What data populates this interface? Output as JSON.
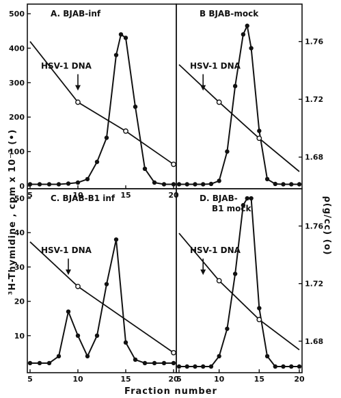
{
  "figure": {
    "xlabel": "Fraction number",
    "ylabel_left": "³H-Thymidine , cpm x 10⁻³ (•)",
    "ylabel_right": "ρ(g/cc)    (o)"
  },
  "chart_data": [
    {
      "type": "line",
      "panel": "A",
      "title": "A. BJAB-inf",
      "annotation": "HSV-1 DNA",
      "arrow_x": 10,
      "xlim": [
        5,
        20
      ],
      "ylim": [
        0,
        520
      ],
      "yticks": [
        0,
        100,
        200,
        300,
        400,
        500
      ],
      "xticks": [
        5,
        10,
        15,
        20
      ],
      "density_ylim": [
        1.66,
        1.784
      ],
      "density_yticks": [],
      "series": [
        {
          "role": "cpm",
          "marker": "filled-circle",
          "x": [
            5,
            6,
            7,
            8,
            9,
            10,
            11,
            12,
            13,
            14,
            14.5,
            15,
            16,
            17,
            18,
            19,
            20
          ],
          "y": [
            5,
            5,
            5,
            5,
            7,
            10,
            20,
            70,
            140,
            380,
            440,
            430,
            230,
            50,
            10,
            5,
            5
          ]
        },
        {
          "role": "density",
          "marker": "open-circle",
          "x": [
            5,
            10,
            15,
            20
          ],
          "y": [
            1.76,
            1.718,
            1.698,
            1.675
          ],
          "markers_at": [
            10,
            15,
            20
          ]
        }
      ]
    },
    {
      "type": "line",
      "panel": "B",
      "title": "B BJAB-mock",
      "annotation": "HSV-1 DNA",
      "arrow_x": 8,
      "xlim": [
        5,
        20
      ],
      "ylim": [
        0,
        520
      ],
      "yticks": [],
      "xticks": [],
      "density_ylim": [
        1.66,
        1.784
      ],
      "density_yticks": [
        1.76,
        1.72,
        1.68
      ],
      "series": [
        {
          "role": "cpm",
          "marker": "filled-circle",
          "x": [
            5,
            6,
            7,
            8,
            9,
            10,
            11,
            12,
            13,
            13.5,
            14,
            15,
            16,
            17,
            18,
            19,
            20
          ],
          "y": [
            5,
            5,
            5,
            5,
            6,
            15,
            100,
            290,
            440,
            465,
            400,
            160,
            20,
            6,
            5,
            5,
            5
          ]
        },
        {
          "role": "density",
          "marker": "open-circle",
          "x": [
            5,
            10,
            15,
            20
          ],
          "y": [
            1.744,
            1.718,
            1.693,
            1.67
          ],
          "markers_at": [
            10,
            15
          ]
        }
      ]
    },
    {
      "type": "line",
      "panel": "C",
      "title": "C. BJAB-B1 inf",
      "annotation": "HSV-1 DNA",
      "arrow_x": 9,
      "xlim": [
        5,
        20
      ],
      "ylim": [
        0,
        52
      ],
      "yticks": [
        10,
        20,
        30,
        40,
        50
      ],
      "xticks": [
        5,
        10,
        15,
        20
      ],
      "density_ylim": [
        1.66,
        1.784
      ],
      "density_yticks": [],
      "series": [
        {
          "role": "cpm",
          "marker": "filled-circle",
          "x": [
            5,
            6,
            7,
            8,
            9,
            10,
            11,
            12,
            13,
            14,
            15,
            16,
            17,
            18,
            19,
            20
          ],
          "y": [
            2,
            2,
            2,
            4,
            17,
            10,
            4,
            10,
            25,
            38,
            8,
            3,
            2,
            2,
            2,
            2
          ]
        },
        {
          "role": "density",
          "marker": "open-circle",
          "x": [
            5,
            10,
            20
          ],
          "y": [
            1.749,
            1.718,
            1.672
          ],
          "markers_at": [
            10,
            20
          ]
        }
      ]
    },
    {
      "type": "line",
      "panel": "D",
      "title": "D. BJAB-\nB1 mock",
      "annotation": "HSV-1 DNA",
      "arrow_x": 8,
      "xlim": [
        5,
        20
      ],
      "ylim": [
        0,
        52
      ],
      "yticks": [],
      "xticks": [
        5,
        10,
        15,
        20
      ],
      "density_ylim": [
        1.66,
        1.784
      ],
      "density_yticks": [
        1.76,
        1.72,
        1.68
      ],
      "series": [
        {
          "role": "cpm",
          "marker": "filled-circle",
          "x": [
            5,
            6,
            7,
            8,
            9,
            10,
            11,
            12,
            13,
            13.5,
            14,
            15,
            16,
            17,
            18,
            19,
            20
          ],
          "y": [
            1,
            1,
            1,
            1,
            1,
            4,
            12,
            28,
            48,
            50,
            50,
            18,
            4,
            1,
            1,
            1,
            1
          ]
        },
        {
          "role": "density",
          "marker": "open-circle",
          "x": [
            5,
            10,
            15,
            20
          ],
          "y": [
            1.755,
            1.722,
            1.695,
            1.674
          ],
          "markers_at": [
            10,
            15
          ]
        }
      ]
    }
  ]
}
